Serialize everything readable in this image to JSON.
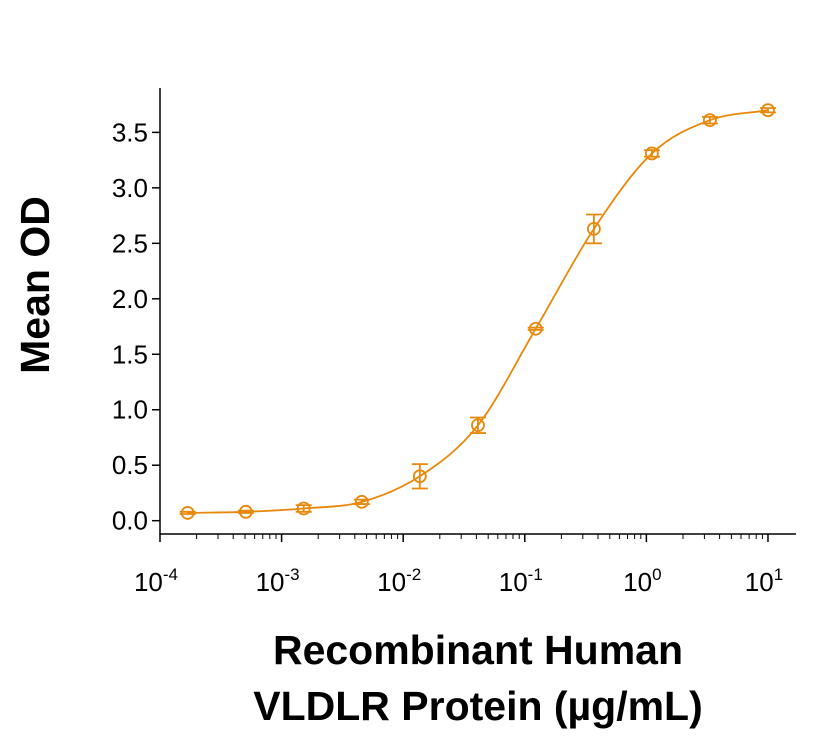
{
  "chart_data": {
    "type": "scatter",
    "xlabel": [
      "Recombinant Human",
      "VLDLR Protein (µg/mL)"
    ],
    "ylabel": "Mean OD",
    "xscale": "log",
    "xlim": [
      0.0001,
      17
    ],
    "ylim": [
      -0.12,
      3.9
    ],
    "grid": false,
    "color": "#E8890C",
    "x_ticks": [
      {
        "base": "10",
        "exp": "-4",
        "value": 0.0001
      },
      {
        "base": "10",
        "exp": "-3",
        "value": 0.001
      },
      {
        "base": "10",
        "exp": "-2",
        "value": 0.01
      },
      {
        "base": "10",
        "exp": "-1",
        "value": 0.1
      },
      {
        "base": "10",
        "exp": "0",
        "value": 1
      },
      {
        "base": "10",
        "exp": "1",
        "value": 10
      }
    ],
    "y_ticks": [
      "0.0",
      "0.5",
      "1.0",
      "1.5",
      "2.0",
      "2.5",
      "3.0",
      "3.5"
    ],
    "series": [
      {
        "x": [
          0.000169,
          0.000508,
          0.00152,
          0.00457,
          0.0137,
          0.0412,
          0.123,
          0.37,
          1.11,
          3.33,
          10
        ],
        "y": [
          0.07,
          0.08,
          0.11,
          0.17,
          0.4,
          0.86,
          1.73,
          2.63,
          3.31,
          3.61,
          3.7
        ],
        "error": [
          0.01,
          0.01,
          0.03,
          0.02,
          0.11,
          0.07,
          0.01,
          0.13,
          0.03,
          0.03,
          0.02
        ],
        "fit_line": true
      }
    ]
  }
}
